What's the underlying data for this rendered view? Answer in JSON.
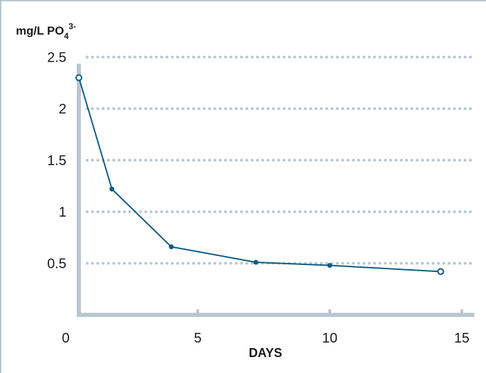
{
  "chart_data": {
    "type": "line",
    "ylabel": {
      "main": "mg/L PO",
      "subscript": "4",
      "superscript": "3-"
    },
    "xlabel": "DAYS",
    "xlim": [
      0,
      15
    ],
    "ylim": [
      0,
      2.5
    ],
    "x_ticks": [
      0,
      5,
      10,
      15
    ],
    "x_tick_labels": [
      "0",
      "5",
      "10",
      "15"
    ],
    "y_ticks": [
      0.5,
      1,
      1.5,
      2,
      2.5
    ],
    "y_tick_labels": [
      "0.5",
      "1",
      "1.5",
      "2",
      "2.5"
    ],
    "grid": "horizontal dotted",
    "series": [
      {
        "x": [
          0.5,
          1.75,
          4,
          7.2,
          10,
          14.2
        ],
        "y": [
          2.3,
          1.22,
          0.66,
          0.51,
          0.48,
          0.42
        ],
        "markers": [
          "open",
          "filled",
          "filled",
          "filled",
          "filled",
          "open"
        ]
      }
    ],
    "colors": {
      "line": "#0e5c82",
      "axis": "#b9c6d2",
      "grid": "#b9c6d2"
    }
  }
}
